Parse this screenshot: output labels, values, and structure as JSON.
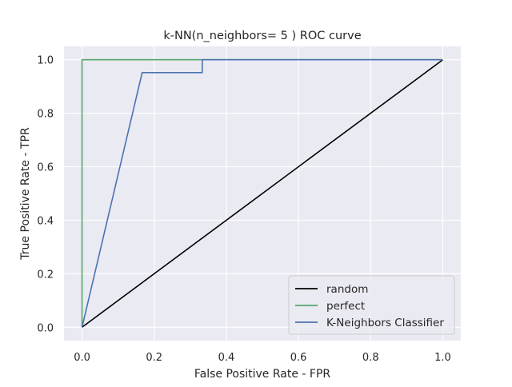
{
  "chart_data": {
    "type": "line",
    "title": "k-NN(n_neighbors= 5 ) ROC curve",
    "xlabel": "False Positive Rate - FPR",
    "ylabel": "True Positive Rate - TPR",
    "xlim": [
      -0.05,
      1.05
    ],
    "ylim": [
      -0.05,
      1.05
    ],
    "xticks": [
      0.0,
      0.2,
      0.4,
      0.6,
      0.8,
      1.0
    ],
    "xtick_labels": [
      "0.0",
      "0.2",
      "0.4",
      "0.6",
      "0.8",
      "1.0"
    ],
    "yticks": [
      0.0,
      0.2,
      0.4,
      0.6,
      0.8,
      1.0
    ],
    "ytick_labels": [
      "0.0",
      "0.2",
      "0.4",
      "0.6",
      "0.8",
      "1.0"
    ],
    "grid": true,
    "legend_position": "bottom-right",
    "background_color": "#eaeaf2",
    "grid_color": "#ffffff",
    "series": [
      {
        "name": "random",
        "color": "#000000",
        "x": [
          0.0,
          1.0
        ],
        "y": [
          0.0,
          1.0
        ]
      },
      {
        "name": "perfect",
        "color": "#55a868",
        "x": [
          0.0,
          0.0,
          1.0
        ],
        "y": [
          0.0,
          1.0,
          1.0
        ]
      },
      {
        "name": "K-Neighbors Classifier",
        "color": "#4c72b0",
        "x": [
          0.0,
          0.1667,
          0.3333,
          0.3333,
          1.0
        ],
        "y": [
          0.0,
          0.952,
          0.952,
          1.0,
          1.0
        ]
      }
    ]
  }
}
